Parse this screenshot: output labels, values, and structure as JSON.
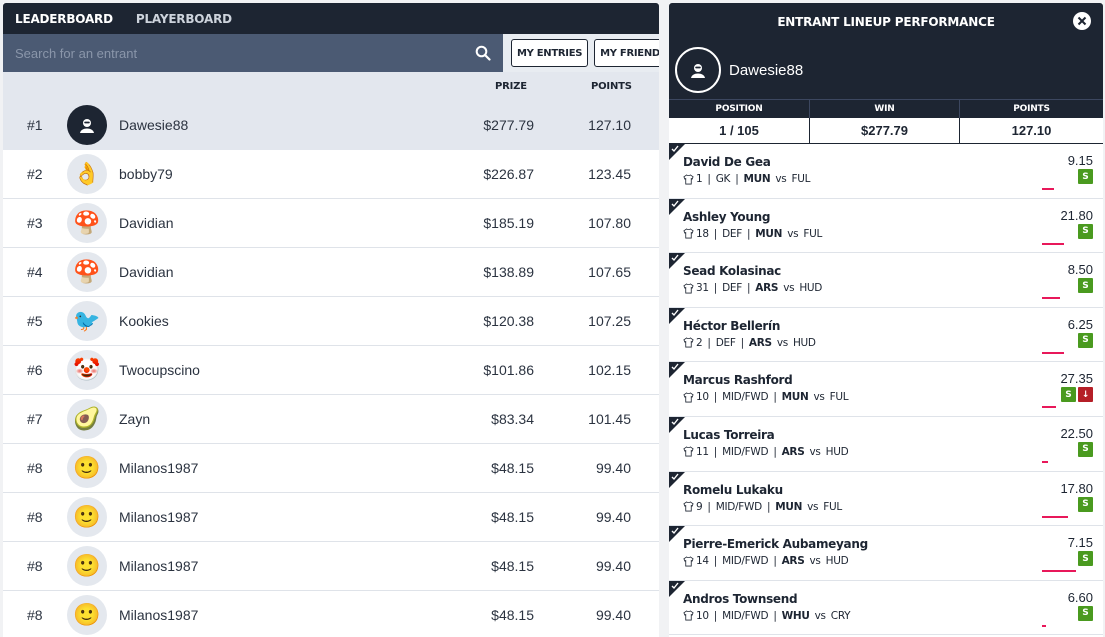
{
  "tabs": {
    "leaderboard": "LEADERBOARD",
    "playerboard": "PLAYERBOARD"
  },
  "search": {
    "placeholder": "Search for an entrant"
  },
  "buttons": {
    "my_entries": "MY ENTRIES",
    "my_friends": "MY FRIENDS"
  },
  "columns": {
    "prize": "PRIZE",
    "points": "POINTS"
  },
  "leaderboard": [
    {
      "rank": "#1",
      "name": "Dawesie88",
      "prize": "$277.79",
      "points": "127.10",
      "avatar": "user-silhouette-icon",
      "avatar_glyph": ""
    },
    {
      "rank": "#2",
      "name": "bobby79",
      "prize": "$226.87",
      "points": "123.45",
      "avatar": "ok-hand-icon",
      "avatar_glyph": "👌"
    },
    {
      "rank": "#3",
      "name": "Davidian",
      "prize": "$185.19",
      "points": "107.80",
      "avatar": "mushroom-icon",
      "avatar_glyph": "🍄"
    },
    {
      "rank": "#4",
      "name": "Davidian",
      "prize": "$138.89",
      "points": "107.65",
      "avatar": "mushroom-icon",
      "avatar_glyph": "🍄"
    },
    {
      "rank": "#5",
      "name": "Kookies",
      "prize": "$120.38",
      "points": "107.25",
      "avatar": "kookaburra-photo",
      "avatar_glyph": "🐦"
    },
    {
      "rank": "#6",
      "name": "Twocupscino",
      "prize": "$101.86",
      "points": "102.15",
      "avatar": "clown-icon",
      "avatar_glyph": "🤡"
    },
    {
      "rank": "#7",
      "name": "Zayn",
      "prize": "$83.34",
      "points": "101.45",
      "avatar": "avocado-icon",
      "avatar_glyph": "🥑"
    },
    {
      "rank": "#8",
      "name": "Milanos1987",
      "prize": "$48.15",
      "points": "99.40",
      "avatar": "smile-icon",
      "avatar_glyph": "🙂"
    },
    {
      "rank": "#8",
      "name": "Milanos1987",
      "prize": "$48.15",
      "points": "99.40",
      "avatar": "smile-icon",
      "avatar_glyph": "🙂"
    },
    {
      "rank": "#8",
      "name": "Milanos1987",
      "prize": "$48.15",
      "points": "99.40",
      "avatar": "smile-icon",
      "avatar_glyph": "🙂"
    },
    {
      "rank": "#8",
      "name": "Milanos1987",
      "prize": "$48.15",
      "points": "99.40",
      "avatar": "smile-icon",
      "avatar_glyph": "🙂"
    }
  ],
  "panel": {
    "title": "ENTRANT LINEUP PERFORMANCE",
    "user": "Dawesie88",
    "stats_labels": {
      "position": "POSITION",
      "win": "WIN",
      "points": "POINTS"
    },
    "stats_values": {
      "position": "1 / 105",
      "win": "$277.79",
      "points": "127.10"
    },
    "players": [
      {
        "name": "David De Gea",
        "number": "1",
        "pos": "GK",
        "team": "MUN",
        "opp": "FUL",
        "points": "9.15",
        "bar": 0.3,
        "badges": [
          "S"
        ]
      },
      {
        "name": "Ashley Young",
        "number": "18",
        "pos": "DEF",
        "team": "MUN",
        "opp": "FUL",
        "points": "21.80",
        "bar": 0.55,
        "badges": [
          "S"
        ]
      },
      {
        "name": "Sead Kolasinac",
        "number": "31",
        "pos": "DEF",
        "team": "ARS",
        "opp": "HUD",
        "points": "8.50",
        "bar": 0.45,
        "badges": [
          "S"
        ]
      },
      {
        "name": "Héctor Bellerín",
        "number": "2",
        "pos": "DEF",
        "team": "ARS",
        "opp": "HUD",
        "points": "6.25",
        "bar": 0.55,
        "badges": [
          "S"
        ]
      },
      {
        "name": "Marcus Rashford",
        "number": "10",
        "pos": "MID/FWD",
        "team": "MUN",
        "opp": "FUL",
        "points": "27.35",
        "bar": 0.35,
        "badges": [
          "S",
          "↓"
        ]
      },
      {
        "name": "Lucas Torreira",
        "number": "11",
        "pos": "MID/FWD",
        "team": "ARS",
        "opp": "HUD",
        "points": "22.50",
        "bar": 0.15,
        "badges": [
          "S"
        ]
      },
      {
        "name": "Romelu Lukaku",
        "number": "9",
        "pos": "MID/FWD",
        "team": "MUN",
        "opp": "FUL",
        "points": "17.80",
        "bar": 0.65,
        "badges": [
          "S"
        ]
      },
      {
        "name": "Pierre-Emerick Aubameyang",
        "number": "14",
        "pos": "MID/FWD",
        "team": "ARS",
        "opp": "HUD",
        "points": "7.15",
        "bar": 0.85,
        "badges": [
          "S"
        ]
      },
      {
        "name": "Andros Townsend",
        "number": "10",
        "pos": "MID/FWD",
        "team": "WHU",
        "opp": "CRY",
        "points": "6.60",
        "bar": 0.1,
        "badges": [
          "S"
        ]
      }
    ]
  },
  "colors": {
    "navy": "#1d2532",
    "slate": "#4b5a73",
    "green": "#4a9a1f",
    "red": "#b51f27",
    "pink": "#e8185a"
  }
}
